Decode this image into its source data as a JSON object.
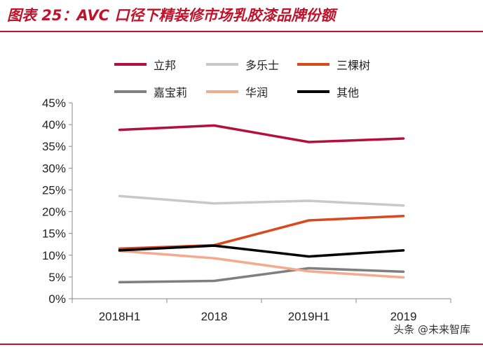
{
  "header": {
    "title": "图表 25：AVC 口径下精装修市场乳胶漆品牌份额"
  },
  "watermark": "头条 @未来智库",
  "chart_data": {
    "type": "line",
    "categories": [
      "2018H1",
      "2018",
      "2019H1",
      "2019"
    ],
    "ylim": [
      0,
      45
    ],
    "yticks": [
      "0%",
      "5%",
      "10%",
      "15%",
      "20%",
      "25%",
      "30%",
      "35%",
      "40%",
      "45%"
    ],
    "ytick_values": [
      0,
      5,
      10,
      15,
      20,
      25,
      30,
      35,
      40,
      45
    ],
    "legend_position": "top",
    "series": [
      {
        "name": "立邦",
        "color": "#b5103c",
        "values": [
          38.8,
          39.8,
          36.0,
          36.8
        ]
      },
      {
        "name": "多乐士",
        "color": "#c8c8c8",
        "values": [
          23.6,
          21.9,
          22.5,
          21.4
        ]
      },
      {
        "name": "三棵树",
        "color": "#d9491b",
        "values": [
          11.5,
          12.3,
          18.0,
          19.0
        ]
      },
      {
        "name": "嘉宝莉",
        "color": "#7f7f7f",
        "values": [
          3.8,
          4.1,
          7.0,
          6.2
        ]
      },
      {
        "name": "华润",
        "color": "#f5a98f",
        "values": [
          11.0,
          9.3,
          6.3,
          4.9
        ]
      },
      {
        "name": "其他",
        "color": "#000000",
        "values": [
          11.1,
          12.2,
          9.7,
          11.1
        ]
      }
    ]
  }
}
